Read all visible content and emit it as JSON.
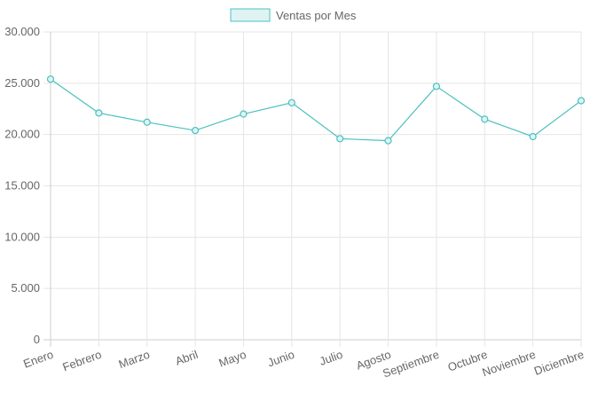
{
  "colors": {
    "line": "#4bc0c0",
    "fill": "#dff3f3",
    "grid": "#e5e5e5",
    "axis": "#cccccc",
    "text": "#666666"
  },
  "legend": {
    "label": "Ventas por Mes"
  },
  "chart_data": {
    "type": "line",
    "categories": [
      "Enero",
      "Febrero",
      "Marzo",
      "Abril",
      "Mayo",
      "Junio",
      "Julio",
      "Agosto",
      "Septiembre",
      "Octubre",
      "Noviembre",
      "Diciembre"
    ],
    "series": [
      {
        "name": "Ventas por Mes",
        "values": [
          25400,
          22100,
          21200,
          20400,
          22000,
          23100,
          19600,
          19400,
          24700,
          21500,
          19800,
          23300
        ]
      }
    ],
    "y_ticks": [
      "0",
      "5.000",
      "10.000",
      "15.000",
      "20.000",
      "25.000",
      "30.000"
    ],
    "ylim": [
      0,
      30000
    ],
    "grid": true,
    "legend_position": "top"
  }
}
